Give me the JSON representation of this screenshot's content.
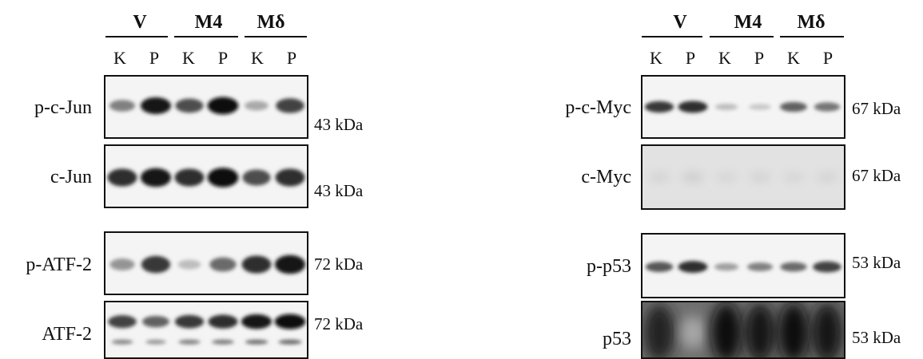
{
  "left": {
    "groups": [
      "V",
      "M4",
      "Mδ"
    ],
    "lanes": [
      "K",
      "P",
      "K",
      "P",
      "K",
      "P"
    ],
    "blots": [
      {
        "protein": "p-c-Jun",
        "mw": "43 kDa",
        "band_intensity": [
          0.45,
          0.95,
          0.7,
          1.0,
          0.25,
          0.75
        ]
      },
      {
        "protein": "c-Jun",
        "mw": "43 kDa",
        "band_intensity": [
          0.85,
          0.95,
          0.85,
          1.0,
          0.7,
          0.85
        ]
      },
      {
        "protein": "p-ATF-2",
        "mw": "72 kDa",
        "band_intensity": [
          0.35,
          0.8,
          0.15,
          0.55,
          0.85,
          0.95
        ]
      },
      {
        "protein": "ATF-2",
        "mw": "72 kDa",
        "band_intensity": [
          0.75,
          0.6,
          0.8,
          0.85,
          0.95,
          1.0
        ]
      }
    ]
  },
  "right": {
    "groups": [
      "V",
      "M4",
      "Mδ"
    ],
    "lanes": [
      "K",
      "P",
      "K",
      "P",
      "K",
      "P"
    ],
    "blots": [
      {
        "protein": "p-c-Myc",
        "mw": "67 kDa",
        "band_intensity": [
          0.8,
          0.85,
          0.15,
          0.1,
          0.6,
          0.5
        ]
      },
      {
        "protein": "c-Myc",
        "mw": "67 kDa",
        "band_intensity": [
          0.05,
          0.08,
          0.04,
          0.05,
          0.04,
          0.05
        ]
      },
      {
        "protein": "p-p53",
        "mw": "53 kDa",
        "band_intensity": [
          0.65,
          0.85,
          0.3,
          0.45,
          0.55,
          0.75
        ]
      },
      {
        "protein": "p53",
        "mw": "53 kDa",
        "band_intensity": [
          0.9,
          0.25,
          1.0,
          0.95,
          1.0,
          0.95
        ]
      }
    ]
  }
}
